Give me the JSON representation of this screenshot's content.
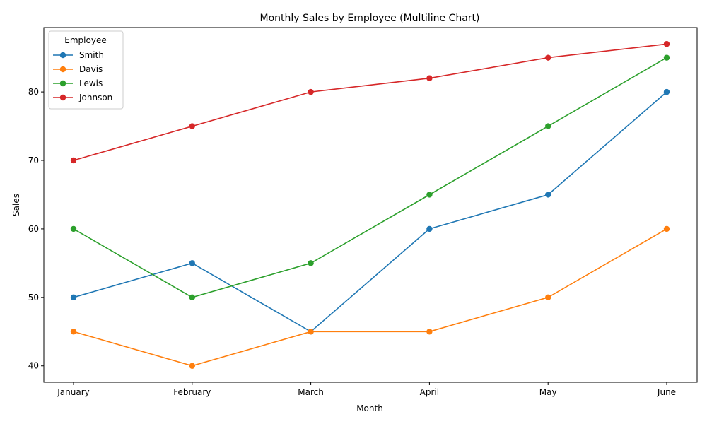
{
  "chart_data": {
    "type": "line",
    "title": "Monthly Sales by Employee (Multiline Chart)",
    "xlabel": "Month",
    "ylabel": "Sales",
    "categories": [
      "January",
      "February",
      "March",
      "April",
      "May",
      "June"
    ],
    "ylim": [
      37.6,
      89.4
    ],
    "yticks": [
      40,
      50,
      60,
      70,
      80
    ],
    "grid": false,
    "legend": {
      "title": "Employee",
      "placement": "top-left"
    },
    "series": [
      {
        "name": "Smith",
        "color": "#1f77b4",
        "values": [
          50,
          55,
          45,
          60,
          65,
          80
        ]
      },
      {
        "name": "Davis",
        "color": "#ff7f0e",
        "values": [
          45,
          40,
          45,
          45,
          50,
          60
        ]
      },
      {
        "name": "Lewis",
        "color": "#2ca02c",
        "values": [
          60,
          50,
          55,
          65,
          75,
          85
        ]
      },
      {
        "name": "Johnson",
        "color": "#d62728",
        "values": [
          70,
          75,
          80,
          82,
          85,
          87
        ]
      }
    ]
  }
}
